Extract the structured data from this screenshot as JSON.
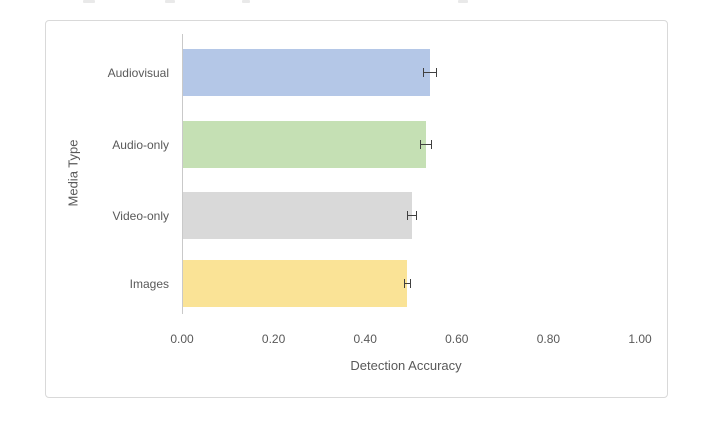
{
  "chart_data": {
    "type": "bar",
    "orientation": "horizontal",
    "title": "",
    "categories": [
      "Audiovisual",
      "Audio-only",
      "Video-only",
      "Images"
    ],
    "values": [
      0.54,
      0.53,
      0.5,
      0.49
    ],
    "error_bars": [
      0.013,
      0.011,
      0.009,
      0.006
    ],
    "bar_colors": [
      "#B4C7E7",
      "#C5E0B4",
      "#D9D9D9",
      "#FAE396"
    ],
    "xlabel": "Detection Accuracy",
    "ylabel": "Media Type",
    "xlim": [
      0,
      1.0
    ],
    "x_tick_labels": [
      "0.00",
      "0.20",
      "0.40",
      "0.60",
      "0.80",
      "1.00"
    ],
    "x_tick_values": [
      0,
      0.2,
      0.4,
      0.6,
      0.8,
      1.0
    ],
    "grid": false,
    "legend": false,
    "label_color": "#595959",
    "axis_line_color": "#C9C9C9",
    "error_bar_color": "#404040",
    "chart_border_color": "#D9D9D9"
  }
}
